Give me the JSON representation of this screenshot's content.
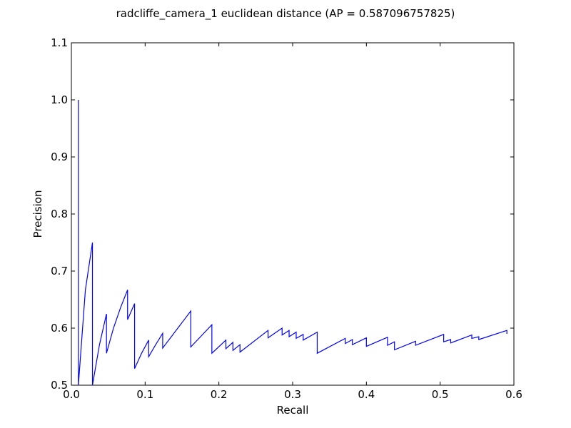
{
  "chart_data": {
    "type": "line",
    "title": "radcliffe_camera_1 euclidean distance  (AP = 0.587096757825)",
    "xlabel": "Recall",
    "ylabel": "Precision",
    "xlim": [
      0.0,
      0.6
    ],
    "ylim": [
      0.5,
      1.1
    ],
    "xticks": [
      0.0,
      0.1,
      0.2,
      0.3,
      0.4,
      0.5,
      0.6
    ],
    "xtick_labels": [
      "0.0",
      "0.1",
      "0.2",
      "0.3",
      "0.4",
      "0.5",
      "0.6"
    ],
    "yticks": [
      0.5,
      0.6,
      0.7,
      0.8,
      0.9,
      1.0,
      1.1
    ],
    "ytick_labels": [
      "0.5",
      "0.6",
      "0.7",
      "0.8",
      "0.9",
      "1.0",
      "1.1"
    ],
    "grid": false,
    "series": [
      {
        "color": "#0000ff",
        "x": [
          0.0095,
          0.0095,
          0.0095,
          0.019,
          0.0286,
          0.0286,
          0.0381,
          0.0476,
          0.0476,
          0.0571,
          0.0667,
          0.0762,
          0.0762,
          0.0857,
          0.0857,
          0.0952,
          0.1048,
          0.1048,
          0.1143,
          0.1238,
          0.1238,
          0.1619,
          0.1619,
          0.1905,
          0.1905,
          0.2095,
          0.2095,
          0.219,
          0.219,
          0.2286,
          0.2286,
          0.2667,
          0.2667,
          0.2857,
          0.2857,
          0.2952,
          0.2952,
          0.3048,
          0.3048,
          0.3143,
          0.3143,
          0.3333,
          0.3333,
          0.3714,
          0.3714,
          0.381,
          0.381,
          0.4,
          0.4,
          0.4286,
          0.4286,
          0.4381,
          0.4381,
          0.4667,
          0.4667,
          0.5048,
          0.5048,
          0.5143,
          0.5143,
          0.5429,
          0.5429,
          0.5524,
          0.5524,
          0.5905,
          0.5905
        ],
        "y": [
          1.0,
          0.5,
          0.5,
          0.667,
          0.75,
          0.5,
          0.571,
          0.625,
          0.556,
          0.6,
          0.636,
          0.667,
          0.615,
          0.643,
          0.529,
          0.556,
          0.579,
          0.55,
          0.571,
          0.591,
          0.565,
          0.63,
          0.567,
          0.606,
          0.556,
          0.579,
          0.564,
          0.575,
          0.561,
          0.571,
          0.558,
          0.596,
          0.583,
          0.6,
          0.588,
          0.596,
          0.585,
          0.593,
          0.582,
          0.589,
          0.579,
          0.593,
          0.556,
          0.582,
          0.573,
          0.58,
          0.571,
          0.583,
          0.568,
          0.584,
          0.57,
          0.576,
          0.562,
          0.577,
          0.57,
          0.589,
          0.576,
          0.58,
          0.574,
          0.588,
          0.582,
          0.585,
          0.58,
          0.596,
          0.59
        ]
      }
    ]
  }
}
